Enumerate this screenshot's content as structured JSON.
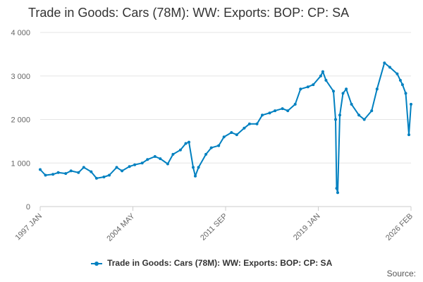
{
  "chart_data": {
    "type": "line",
    "title": "Trade in Goods: Cars (78M): WW: Exports: BOP: CP: SA",
    "xlabel": "",
    "ylabel": "",
    "ylim": [
      0,
      4000
    ],
    "yticks": [
      0,
      1000,
      2000,
      3000,
      4000
    ],
    "ytick_labels": [
      "0",
      "1 000",
      "2 000",
      "3 000",
      "4 000"
    ],
    "x_range": [
      "1997-01",
      "2026-02"
    ],
    "xtick_labels": [
      "1997 JAN",
      "2004 MAY",
      "2011 SEP",
      "2019 JAN",
      "2026 FEB"
    ],
    "grid": true,
    "legend": "bottom-center",
    "series": [
      {
        "name": "Trade in Goods: Cars (78M): WW: Exports: BOP: CP: SA",
        "color": "#0080c0",
        "x": [
          "1997-01",
          "1997-06",
          "1998-01",
          "1998-06",
          "1999-01",
          "1999-06",
          "2000-01",
          "2000-06",
          "2001-01",
          "2001-06",
          "2002-01",
          "2002-06",
          "2003-01",
          "2003-06",
          "2004-01",
          "2004-06",
          "2005-01",
          "2005-06",
          "2006-01",
          "2006-06",
          "2007-01",
          "2007-06",
          "2008-01",
          "2008-06",
          "2008-09",
          "2009-01",
          "2009-03",
          "2009-06",
          "2010-01",
          "2010-06",
          "2011-01",
          "2011-06",
          "2012-01",
          "2012-06",
          "2013-01",
          "2013-06",
          "2014-01",
          "2014-06",
          "2015-01",
          "2015-06",
          "2016-01",
          "2016-06",
          "2017-01",
          "2017-06",
          "2018-01",
          "2018-06",
          "2019-01",
          "2019-03",
          "2019-06",
          "2020-01",
          "2020-03",
          "2020-04",
          "2020-05",
          "2020-07",
          "2020-10",
          "2021-01",
          "2021-06",
          "2022-01",
          "2022-06",
          "2023-01",
          "2023-06",
          "2024-01",
          "2024-06",
          "2025-01",
          "2025-04",
          "2025-06",
          "2025-09",
          "2025-12",
          "2026-02"
        ],
        "values": [
          850,
          720,
          740,
          780,
          760,
          820,
          780,
          900,
          800,
          650,
          680,
          720,
          900,
          820,
          920,
          960,
          1000,
          1080,
          1150,
          1100,
          980,
          1200,
          1300,
          1450,
          1480,
          900,
          700,
          900,
          1200,
          1350,
          1400,
          1600,
          1700,
          1650,
          1800,
          1900,
          1900,
          2100,
          2150,
          2200,
          2250,
          2200,
          2350,
          2700,
          2750,
          2800,
          3000,
          3100,
          2900,
          2650,
          2000,
          420,
          320,
          2100,
          2600,
          2700,
          2350,
          2100,
          2000,
          2200,
          2700,
          3300,
          3200,
          3050,
          2900,
          2800,
          2600,
          1650,
          2350
        ]
      }
    ]
  },
  "legend": {
    "label": "Trade in Goods: Cars (78M): WW: Exports: BOP: CP: SA"
  },
  "footer": {
    "source": "Source:"
  }
}
